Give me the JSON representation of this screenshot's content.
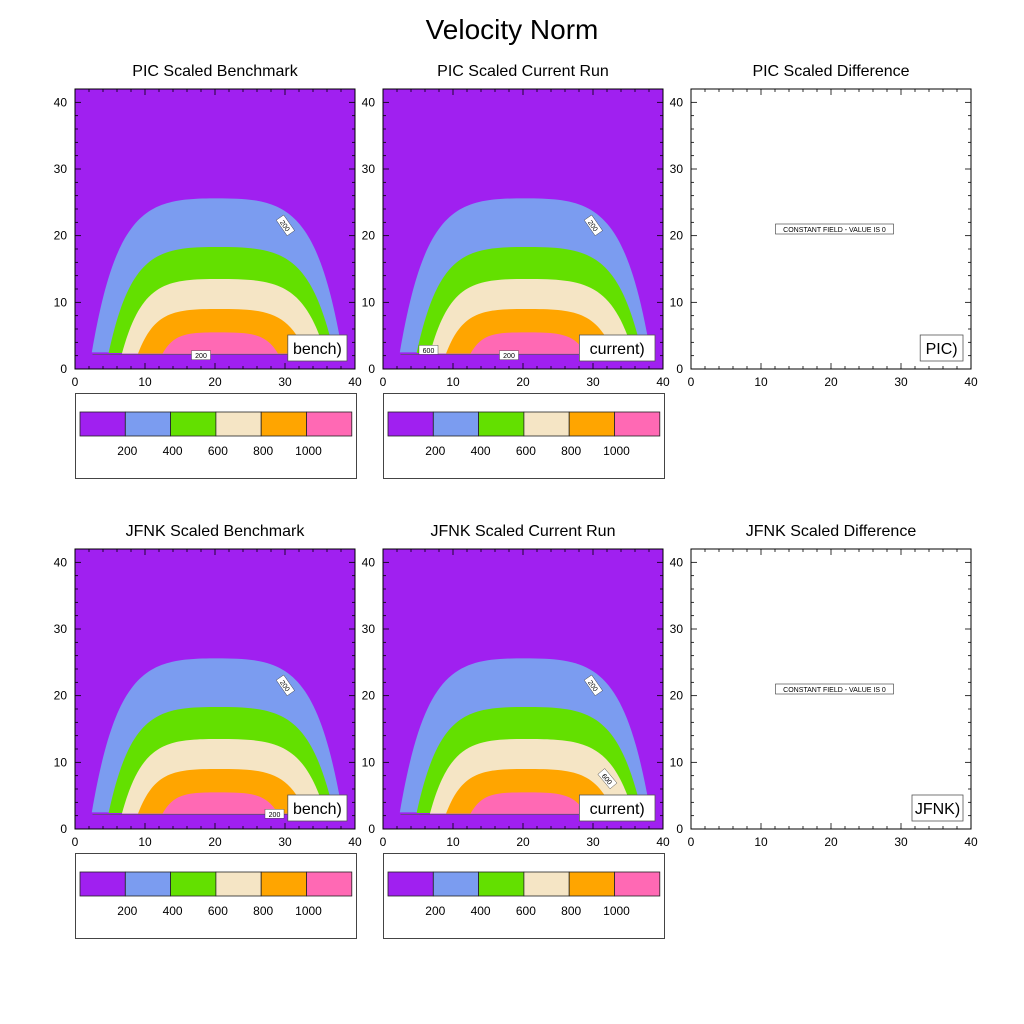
{
  "title": "Velocity Norm",
  "colors": {
    "c0": "#a020f0",
    "c200": "#7b9cf0",
    "c400": "#63e000",
    "c600": "#f5e5c5",
    "c800": "#ffa500",
    "c1000": "#ff69b4",
    "white": "#ffffff"
  },
  "chart_data": [
    {
      "type": "heatmap",
      "title": "PIC Scaled Benchmark",
      "xlim": [
        0,
        40
      ],
      "ylim": [
        0,
        42
      ],
      "x_ticks": [
        "0",
        "10",
        "20",
        "30",
        "40"
      ],
      "y_ticks": [
        "0",
        "10",
        "20",
        "30",
        "40"
      ],
      "contour_levels": [
        200,
        400,
        600,
        800,
        1000
      ],
      "filled": true,
      "contour_labels": [
        "200",
        "200"
      ],
      "annotation": "bench)",
      "colorbar": true,
      "colorbar_labels": [
        "200",
        "400",
        "600",
        "800",
        "1000"
      ]
    },
    {
      "type": "heatmap",
      "title": "PIC Scaled Current Run",
      "xlim": [
        0,
        40
      ],
      "ylim": [
        0,
        42
      ],
      "x_ticks": [
        "0",
        "10",
        "20",
        "30",
        "40"
      ],
      "y_ticks": [
        "0",
        "10",
        "20",
        "30",
        "40"
      ],
      "contour_levels": [
        200,
        400,
        600,
        800,
        1000
      ],
      "filled": true,
      "contour_labels": [
        "200",
        "600",
        "200",
        "600"
      ],
      "annotation": "current)",
      "colorbar": true,
      "colorbar_labels": [
        "200",
        "400",
        "600",
        "800",
        "1000"
      ]
    },
    {
      "type": "heatmap",
      "title": "PIC Scaled Difference",
      "xlim": [
        0,
        40
      ],
      "ylim": [
        0,
        42
      ],
      "x_ticks": [
        "0",
        "10",
        "20",
        "30",
        "40"
      ],
      "y_ticks": [
        "0",
        "10",
        "20",
        "30",
        "40"
      ],
      "filled": false,
      "constant_text": "CONSTANT FIELD - VALUE IS 0",
      "annotation": "PIC)",
      "colorbar": false
    },
    {
      "type": "heatmap",
      "title": "JFNK Scaled Benchmark",
      "xlim": [
        0,
        40
      ],
      "ylim": [
        0,
        42
      ],
      "x_ticks": [
        "0",
        "10",
        "20",
        "30",
        "40"
      ],
      "y_ticks": [
        "0",
        "10",
        "20",
        "30",
        "40"
      ],
      "contour_levels": [
        200,
        400,
        600,
        800,
        1000
      ],
      "filled": true,
      "contour_labels": [
        "200",
        "200"
      ],
      "annotation": "bench)",
      "colorbar": true,
      "colorbar_labels": [
        "200",
        "400",
        "600",
        "800",
        "1000"
      ]
    },
    {
      "type": "heatmap",
      "title": "JFNK Scaled Current Run",
      "xlim": [
        0,
        40
      ],
      "ylim": [
        0,
        42
      ],
      "x_ticks": [
        "0",
        "10",
        "20",
        "30",
        "40"
      ],
      "y_ticks": [
        "0",
        "10",
        "20",
        "30",
        "40"
      ],
      "contour_levels": [
        200,
        400,
        600,
        800,
        1000
      ],
      "filled": true,
      "contour_labels": [
        "200",
        "600"
      ],
      "annotation": "current)",
      "colorbar": true,
      "colorbar_labels": [
        "200",
        "400",
        "600",
        "800",
        "1000"
      ]
    },
    {
      "type": "heatmap",
      "title": "JFNK Scaled Difference",
      "xlim": [
        0,
        40
      ],
      "ylim": [
        0,
        42
      ],
      "x_ticks": [
        "0",
        "10",
        "20",
        "30",
        "40"
      ],
      "y_ticks": [
        "0",
        "10",
        "20",
        "30",
        "40"
      ],
      "filled": false,
      "constant_text": "CONSTANT FIELD - VALUE IS 0",
      "annotation": "JFNK)",
      "colorbar": false
    }
  ]
}
